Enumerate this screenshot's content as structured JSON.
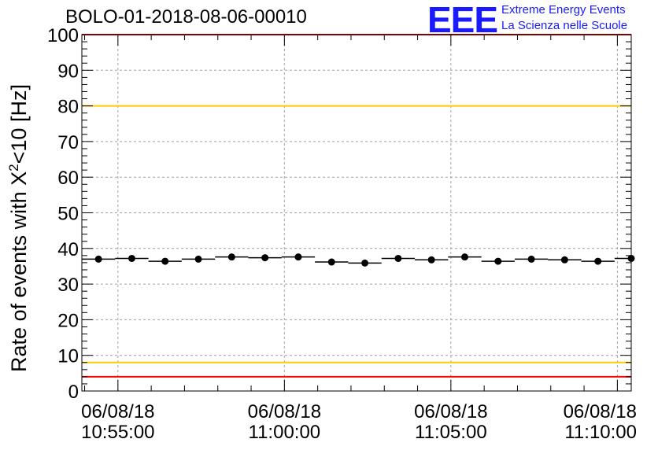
{
  "title": "BOLO-01-2018-08-06-00010",
  "logo": {
    "mark": "EEE",
    "line1": "Extreme Energy Events",
    "line2": "La Scienza nelle Scuole",
    "color": "#1a1aff"
  },
  "chart_data": {
    "type": "scatter",
    "title": "BOLO-01-2018-08-06-00010",
    "ylabel_prefix": "Rate of events with X",
    "ylabel_sup": "2",
    "ylabel_suffix": "<10 [Hz]",
    "xlabel": "",
    "ylim": [
      0,
      100
    ],
    "yticks": [
      0,
      10,
      20,
      30,
      40,
      50,
      60,
      70,
      80,
      90,
      100
    ],
    "xlim": [
      "2018-08-06 10:53:55",
      "2018-08-06 11:10:25"
    ],
    "xticks": [
      {
        "date": "06/08/18",
        "time": "10:55:00"
      },
      {
        "date": "06/08/18",
        "time": "11:00:00"
      },
      {
        "date": "06/08/18",
        "time": "11:05:00"
      },
      {
        "date": "06/08/18",
        "time": "11:10:00"
      }
    ],
    "grid": true,
    "bin_width_seconds": 60,
    "series": [
      {
        "x": [
          "10:54:25",
          "10:55:25",
          "10:56:25",
          "10:57:25",
          "10:58:25",
          "10:59:25",
          "11:00:25",
          "11:01:25",
          "11:02:25",
          "11:03:25",
          "11:04:25",
          "11:05:25",
          "11:06:25",
          "11:07:25",
          "11:08:25",
          "11:09:25",
          "11:10:25"
        ],
        "y": [
          37.0,
          37.2,
          36.4,
          37.0,
          37.6,
          37.4,
          37.6,
          36.2,
          35.9,
          37.2,
          36.8,
          37.6,
          36.4,
          37.0,
          36.8,
          36.4,
          37.2
        ]
      }
    ],
    "reference_lines": [
      {
        "y": 100,
        "color": "#ff0000"
      },
      {
        "y": 80,
        "color": "#ffcc00"
      },
      {
        "y": 8,
        "color": "#ffcc00"
      },
      {
        "y": 4,
        "color": "#ff0000"
      }
    ]
  }
}
